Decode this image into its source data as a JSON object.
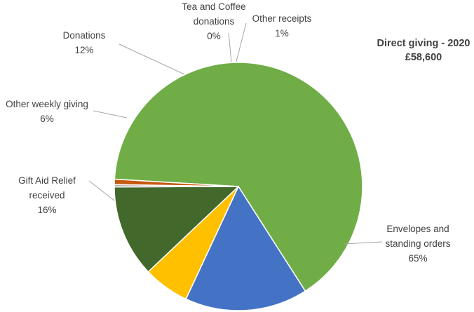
{
  "chart_data": {
    "type": "pie",
    "title": "Direct giving - 2020",
    "subtitle": "£58,600",
    "slices": [
      {
        "label": "Envelopes and standing orders",
        "label_lines": [
          "Envelopes and",
          "standing orders"
        ],
        "value": 65,
        "display": "65%",
        "color": "#70ad47"
      },
      {
        "label": "Gift Aid Relief received",
        "label_lines": [
          "Gift Aid Relief",
          "received"
        ],
        "value": 16,
        "display": "16%",
        "color": "#4472c4"
      },
      {
        "label": "Other weekly giving",
        "label_lines": [
          "Other weekly giving"
        ],
        "value": 6,
        "display": "6%",
        "color": "#ffc000"
      },
      {
        "label": "Donations",
        "label_lines": [
          "Donations"
        ],
        "value": 12,
        "display": "12%",
        "color": "#43682b"
      },
      {
        "label": "Tea and Coffee donations",
        "label_lines": [
          "Tea and Coffee",
          "donations"
        ],
        "value": 0.3,
        "display": "0%",
        "color": "#a5a5a5"
      },
      {
        "label": "Other receipts",
        "label_lines": [
          "Other receipts"
        ],
        "value": 0.7,
        "display": "1%",
        "color": "#c55a11"
      }
    ]
  }
}
